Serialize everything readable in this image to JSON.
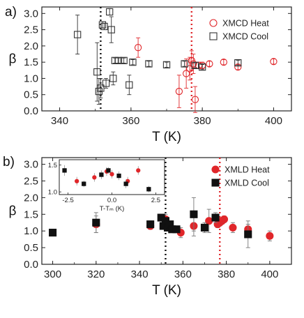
{
  "chart_data": [
    {
      "panel": "a)",
      "type": "scatter",
      "xlabel": "T (K)",
      "ylabel": "β",
      "xlim": [
        335,
        405
      ],
      "ylim": [
        0,
        3.2
      ],
      "x_ticks": [
        "340",
        "360",
        "380",
        "400"
      ],
      "y_ticks": [
        "0.0",
        "0.5",
        "1.0",
        "1.5",
        "2.0",
        "2.5",
        "3.0"
      ],
      "legend_position": "top-right",
      "vlines": [
        {
          "x": 351.5,
          "color": "#111111"
        },
        {
          "x": 377,
          "color": "#e0262a"
        }
      ],
      "series": [
        {
          "name": "XMCD Heat",
          "marker": "open-circle",
          "color": "#e0262a",
          "points": [
            {
              "x": 362,
              "y": 1.95,
              "err": 0.3
            },
            {
              "x": 373.5,
              "y": 0.6,
              "err": 0.5
            },
            {
              "x": 375.5,
              "y": 1.15,
              "err": 0.45
            },
            {
              "x": 376.5,
              "y": 1.3,
              "err": 0.35
            },
            {
              "x": 377,
              "y": 1.55,
              "err": 0.3
            },
            {
              "x": 377.5,
              "y": 1.45,
              "err": 0.3
            },
            {
              "x": 378,
              "y": 0.35,
              "err": 0.4
            },
            {
              "x": 379,
              "y": 1.4,
              "err": 0.1
            },
            {
              "x": 380,
              "y": 1.4,
              "err": 0.1
            },
            {
              "x": 382,
              "y": 1.45,
              "err": 0.08
            },
            {
              "x": 386,
              "y": 1.5,
              "err": 0.08
            },
            {
              "x": 390,
              "y": 1.35,
              "err": 0.08
            },
            {
              "x": 400,
              "y": 1.52,
              "err": 0.08
            }
          ]
        },
        {
          "name": "XMCD Cool",
          "marker": "open-square",
          "color": "#333333",
          "points": [
            {
              "x": 345,
              "y": 2.35,
              "err": 0.6
            },
            {
              "x": 350.5,
              "y": 1.2,
              "err": 0.9
            },
            {
              "x": 351,
              "y": 0.6,
              "err": 0.4
            },
            {
              "x": 351.5,
              "y": 0.7,
              "err": 0.3
            },
            {
              "x": 352,
              "y": 2.65,
              "err": 0.1
            },
            {
              "x": 352.5,
              "y": 2.6,
              "err": 0.1
            },
            {
              "x": 353,
              "y": 0.85,
              "err": 0.15
            },
            {
              "x": 354,
              "y": 3.05,
              "err": 0.1
            },
            {
              "x": 354.5,
              "y": 2.5,
              "err": 0.4
            },
            {
              "x": 355,
              "y": 1.0,
              "err": 0.2
            },
            {
              "x": 355.5,
              "y": 1.55,
              "err": 0.08
            },
            {
              "x": 356.5,
              "y": 1.55,
              "err": 0.08
            },
            {
              "x": 358,
              "y": 1.55,
              "err": 0.08
            },
            {
              "x": 359.5,
              "y": 0.8,
              "err": 0.3
            },
            {
              "x": 360.5,
              "y": 1.5,
              "err": 0.08
            },
            {
              "x": 365,
              "y": 1.45,
              "err": 0.08
            },
            {
              "x": 370,
              "y": 1.42,
              "err": 0.08
            },
            {
              "x": 375,
              "y": 1.45,
              "err": 0.08
            },
            {
              "x": 378,
              "y": 1.4,
              "err": 0.08
            },
            {
              "x": 380,
              "y": 1.35,
              "err": 0.08
            },
            {
              "x": 390,
              "y": 1.48,
              "err": 0.08
            }
          ]
        }
      ]
    },
    {
      "panel": "b)",
      "type": "scatter",
      "xlabel": "T (K)",
      "ylabel": "β",
      "xlim": [
        295,
        410
      ],
      "ylim": [
        0,
        3.2
      ],
      "x_ticks": [
        "300",
        "320",
        "340",
        "360",
        "380",
        "400"
      ],
      "y_ticks": [
        "0.0",
        "0.5",
        "1.0",
        "1.5",
        "2.0",
        "2.5",
        "3.0"
      ],
      "legend_position": "top-right",
      "vlines": [
        {
          "x": 352,
          "color": "#111111"
        },
        {
          "x": 377,
          "color": "#e0262a"
        }
      ],
      "series": [
        {
          "name": "XMLD Heat",
          "marker": "filled-circle",
          "color": "#e0262a",
          "points": [
            {
              "x": 320,
              "y": 1.2,
              "err": 0.25
            },
            {
              "x": 345,
              "y": 1.15,
              "err": 0.1
            },
            {
              "x": 352,
              "y": 1.35,
              "err": 0.15
            },
            {
              "x": 359,
              "y": 0.95,
              "err": 0.15
            },
            {
              "x": 365,
              "y": 1.15,
              "err": 0.3
            },
            {
              "x": 372,
              "y": 1.3,
              "err": 0.35
            },
            {
              "x": 375,
              "y": 1.4,
              "err": 0.1
            },
            {
              "x": 376,
              "y": 1.2,
              "err": 0.1
            },
            {
              "x": 377,
              "y": 1.25,
              "err": 0.1
            },
            {
              "x": 378,
              "y": 1.3,
              "err": 0.1
            },
            {
              "x": 379,
              "y": 1.35,
              "err": 0.1
            },
            {
              "x": 383,
              "y": 1.1,
              "err": 0.15
            },
            {
              "x": 390,
              "y": 1.05,
              "err": 0.15
            },
            {
              "x": 400,
              "y": 0.85,
              "err": 0.15
            }
          ]
        },
        {
          "name": "XMLD Cool",
          "marker": "filled-square",
          "color": "#111111",
          "points": [
            {
              "x": 300,
              "y": 0.95,
              "err": 0.05
            },
            {
              "x": 320,
              "y": 1.25,
              "err": 0.3
            },
            {
              "x": 345,
              "y": 1.2,
              "err": 0.1
            },
            {
              "x": 350,
              "y": 1.4,
              "err": 0.1
            },
            {
              "x": 351,
              "y": 1.15,
              "err": 0.1
            },
            {
              "x": 352,
              "y": 1.3,
              "err": 0.1
            },
            {
              "x": 353,
              "y": 1.1,
              "err": 0.1
            },
            {
              "x": 354,
              "y": 1.2,
              "err": 0.1
            },
            {
              "x": 355,
              "y": 1.05,
              "err": 0.1
            },
            {
              "x": 357,
              "y": 1.05,
              "err": 0.1
            },
            {
              "x": 365,
              "y": 1.5,
              "err": 0.5
            },
            {
              "x": 370,
              "y": 1.1,
              "err": 0.15
            },
            {
              "x": 375,
              "y": 1.4,
              "err": 0.15
            },
            {
              "x": 390,
              "y": 0.9,
              "err": 0.4
            }
          ]
        }
      ],
      "inset": {
        "xlabel": "T-Tₘ (K)",
        "xlim": [
          -3,
          3
        ],
        "ylim": [
          0.95,
          1.6
        ],
        "x_ticks": [
          "-2.5",
          "0.0",
          "2.5"
        ],
        "y_ticks": [
          "1.0",
          "1.5"
        ],
        "series": [
          {
            "name": "XMLD Heat",
            "marker": "filled-circle",
            "color": "#e0262a",
            "points": [
              {
                "x": -2.0,
                "y": 1.2,
                "err": 0.08
              },
              {
                "x": -1.0,
                "y": 1.27,
                "err": 0.08
              },
              {
                "x": -0.3,
                "y": 1.38,
                "err": 0.08
              },
              {
                "x": 0.0,
                "y": 1.33,
                "err": 0.08
              },
              {
                "x": 0.9,
                "y": 1.2,
                "err": 0.08
              },
              {
                "x": 1.5,
                "y": 1.4,
                "err": 0.08
              }
            ]
          },
          {
            "name": "XMLD Cool",
            "marker": "filled-square",
            "color": "#111111",
            "points": [
              {
                "x": -2.7,
                "y": 1.4,
                "err": 0.1
              },
              {
                "x": -1.6,
                "y": 1.15,
                "err": 0.06
              },
              {
                "x": -0.6,
                "y": 1.32,
                "err": 0.08
              },
              {
                "x": -0.2,
                "y": 1.4,
                "err": 0.06
              },
              {
                "x": 0.4,
                "y": 1.3,
                "err": 0.08
              },
              {
                "x": 0.8,
                "y": 1.15,
                "err": 0.08
              },
              {
                "x": 2.1,
                "y": 1.05,
                "err": 0.06
              }
            ]
          }
        ]
      }
    }
  ]
}
